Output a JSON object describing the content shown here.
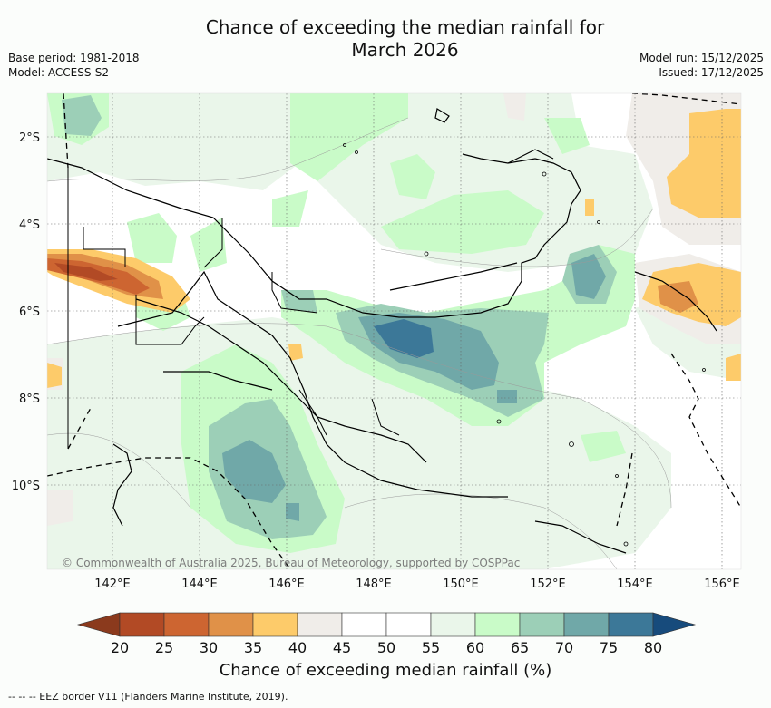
{
  "title": {
    "line1": "Chance of exceeding the median rainfall for",
    "line2": "March 2026"
  },
  "meta": {
    "base_period": "Base period: 1981-2018",
    "model": "Model: ACCESS-S2",
    "model_run": "Model run: 15/12/2025",
    "issued": "Issued: 17/12/2025"
  },
  "map": {
    "lat_labels": [
      "2°S",
      "4°S",
      "6°S",
      "8°S",
      "10°S"
    ],
    "lat_values": [
      -2,
      -4,
      -6,
      -8,
      -10
    ],
    "lon_labels": [
      "142°E",
      "144°E",
      "146°E",
      "148°E",
      "150°E",
      "152°E",
      "154°E",
      "156°E"
    ],
    "lon_values": [
      142,
      144,
      146,
      148,
      150,
      152,
      154,
      156
    ],
    "copyright": "© Commonwealth of Australia 2025, Bureau of Meteorology, supported by COSPPac"
  },
  "colorbar": {
    "ticks": [
      "20",
      "25",
      "30",
      "35",
      "40",
      "45",
      "50",
      "55",
      "60",
      "65",
      "70",
      "75",
      "80"
    ],
    "colors": [
      "#b24a25",
      "#cd6531",
      "#e09148",
      "#fdcb6a",
      "#f0ede9",
      "#ffffff",
      "#ffffff",
      "#eaf6ea",
      "#c9fbc8",
      "#9ccfb7",
      "#70a8a8",
      "#3c7898"
    ],
    "under_color": "#8b3a1d",
    "over_color": "#174b7c",
    "label": "Chance of exceeding median rainfall (%)"
  },
  "footer": "--  --  -- EEZ border V11 (Flanders Marine Institute, 2019)."
}
